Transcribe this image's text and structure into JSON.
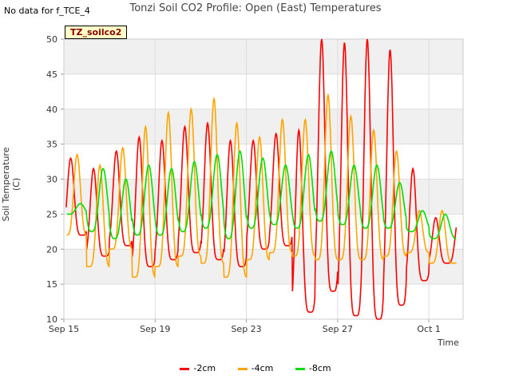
{
  "page": {
    "note": "No data for f_TCE_4",
    "tag": "TZ_soilco2"
  },
  "chart_data": {
    "type": "line",
    "title": "Tonzi Soil CO2 Profile: Open (East) Temperatures",
    "xlabel": "Time",
    "ylabel": "Soil Temperature (C)",
    "ylim": [
      10,
      50
    ],
    "yticks": [
      10,
      15,
      20,
      25,
      30,
      35,
      40,
      45,
      50
    ],
    "xlim_days": [
      0,
      17.5
    ],
    "xticks": [
      {
        "day": 0,
        "label": "Sep 15"
      },
      {
        "day": 4,
        "label": "Sep 19"
      },
      {
        "day": 8,
        "label": "Sep 23"
      },
      {
        "day": 12,
        "label": "Sep 27"
      },
      {
        "day": 16,
        "label": "Oct 1"
      }
    ],
    "grid": true,
    "legend_position": "bottom",
    "series": [
      {
        "name": "-2cm",
        "color": "#ff0000",
        "daily_min": [
          22.0,
          19.0,
          20.5,
          17.5,
          18.5,
          19.5,
          18.5,
          17.5,
          20.0,
          20.5,
          11.0,
          14.0,
          10.5,
          10.0,
          12.0,
          15.5,
          18.0
        ],
        "daily_max": [
          33.0,
          31.5,
          34.0,
          36.0,
          35.5,
          37.5,
          38.0,
          35.5,
          35.5,
          36.5,
          37.0,
          50.0,
          49.5,
          50.0,
          48.5,
          31.5,
          24.5
        ]
      },
      {
        "name": "-4cm",
        "color": "#ffa500",
        "daily_min": [
          22.0,
          17.5,
          20.0,
          16.0,
          17.5,
          19.0,
          18.0,
          16.0,
          18.5,
          19.5,
          19.0,
          18.5,
          18.5,
          18.5,
          19.0,
          19.5,
          18.0
        ],
        "daily_max": [
          33.5,
          32.0,
          34.5,
          37.5,
          39.5,
          40.0,
          41.5,
          38.0,
          36.0,
          38.5,
          38.5,
          42.0,
          39.0,
          37.0,
          34.0,
          25.5,
          25.5
        ]
      },
      {
        "name": "-8cm",
        "color": "#00dd00",
        "daily_min": [
          25.0,
          22.5,
          21.5,
          22.0,
          22.0,
          22.5,
          23.0,
          21.5,
          23.0,
          23.5,
          23.0,
          24.0,
          23.5,
          23.0,
          23.0,
          22.5,
          21.5
        ],
        "daily_max": [
          26.5,
          31.5,
          30.0,
          32.0,
          31.5,
          32.5,
          33.5,
          34.0,
          33.0,
          32.0,
          33.5,
          34.0,
          32.0,
          32.0,
          29.5,
          25.5,
          25.0
        ]
      }
    ]
  }
}
